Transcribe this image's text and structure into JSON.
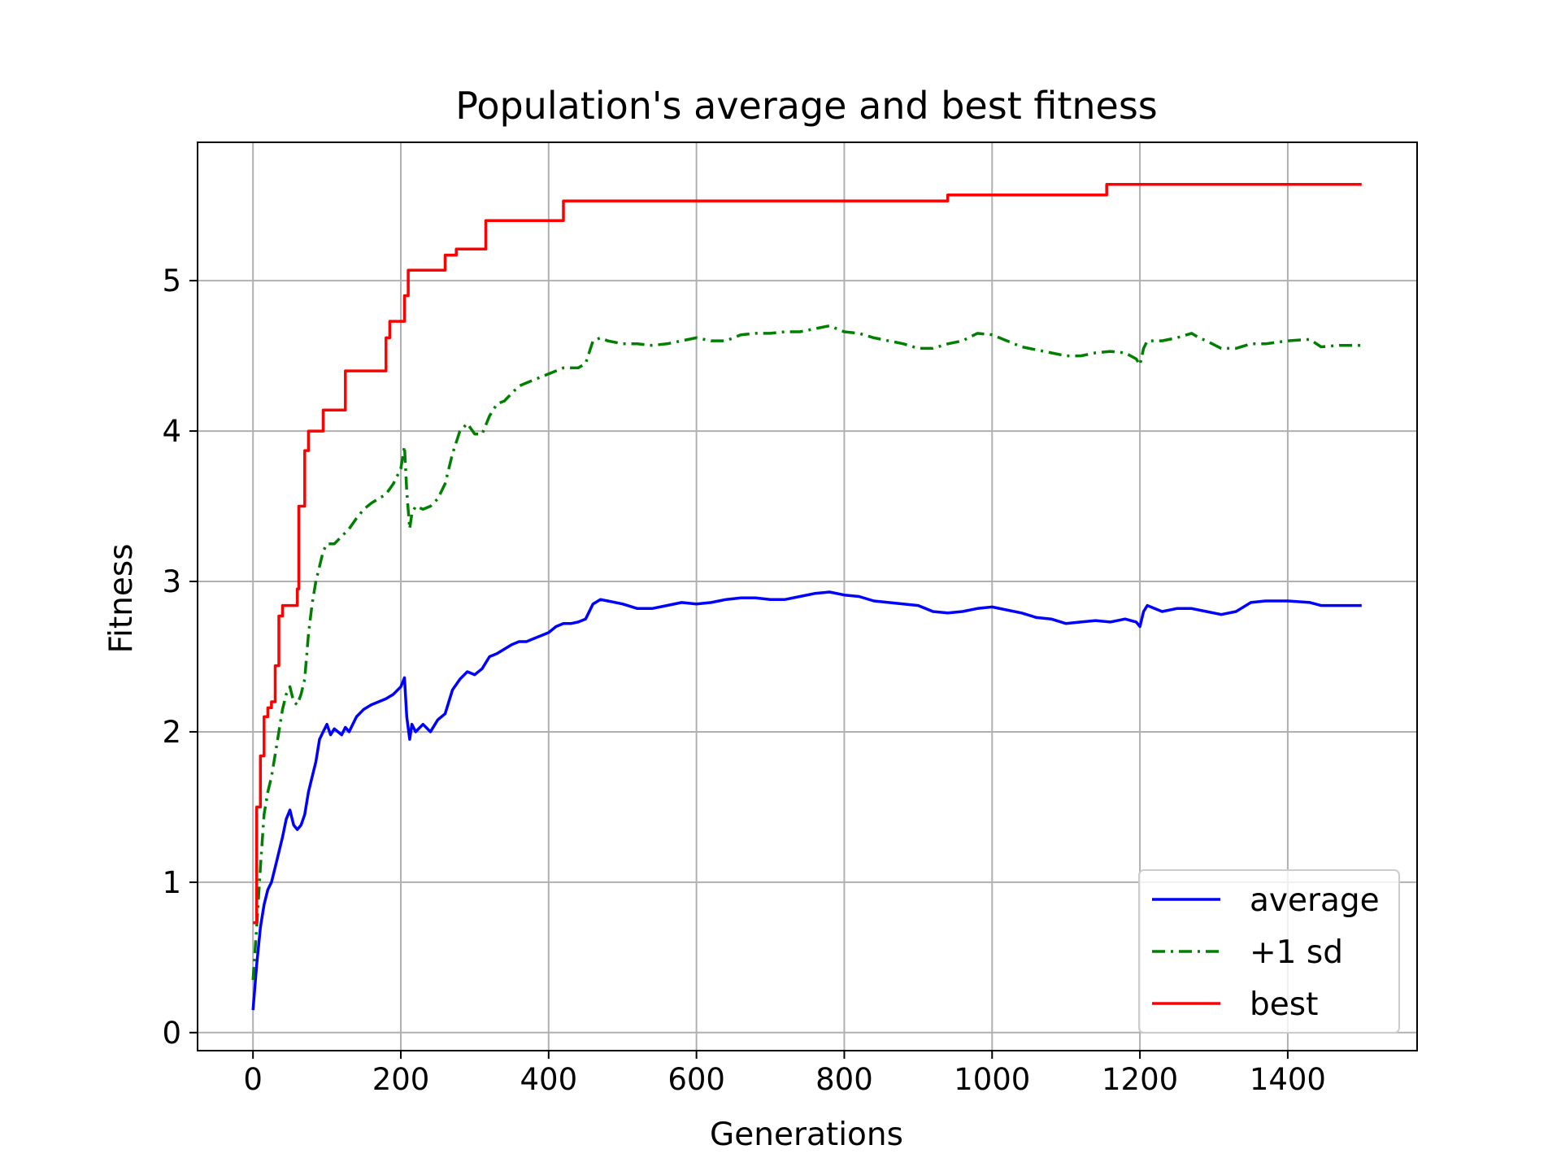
{
  "chart_data": {
    "type": "line",
    "title": "Population's average and best fitness",
    "xlabel": "Generations",
    "ylabel": "Fitness",
    "xlim": [
      -75,
      1575
    ],
    "ylim": [
      -0.12,
      5.92
    ],
    "xticks": [
      0,
      200,
      400,
      600,
      800,
      1000,
      1200,
      1400
    ],
    "xtick_labels": [
      "0",
      "200",
      "400",
      "600",
      "800",
      "1000",
      "1200",
      "1400"
    ],
    "yticks": [
      0,
      1,
      2,
      3,
      4,
      5
    ],
    "ytick_labels": [
      "0",
      "1",
      "2",
      "3",
      "4",
      "5"
    ],
    "grid": true,
    "legend_position": "bottom-right",
    "series": [
      {
        "name": "average",
        "color": "#0000ff",
        "style": "solid",
        "points": [
          [
            0,
            0.15
          ],
          [
            5,
            0.45
          ],
          [
            10,
            0.7
          ],
          [
            15,
            0.85
          ],
          [
            20,
            0.95
          ],
          [
            25,
            1.0
          ],
          [
            30,
            1.1
          ],
          [
            35,
            1.2
          ],
          [
            40,
            1.3
          ],
          [
            45,
            1.42
          ],
          [
            50,
            1.48
          ],
          [
            55,
            1.38
          ],
          [
            60,
            1.35
          ],
          [
            65,
            1.38
          ],
          [
            70,
            1.45
          ],
          [
            75,
            1.6
          ],
          [
            80,
            1.7
          ],
          [
            85,
            1.8
          ],
          [
            90,
            1.95
          ],
          [
            95,
            2.0
          ],
          [
            100,
            2.05
          ],
          [
            105,
            1.98
          ],
          [
            110,
            2.02
          ],
          [
            115,
            2.0
          ],
          [
            120,
            1.98
          ],
          [
            125,
            2.03
          ],
          [
            130,
            2.0
          ],
          [
            135,
            2.05
          ],
          [
            140,
            2.1
          ],
          [
            150,
            2.15
          ],
          [
            160,
            2.18
          ],
          [
            170,
            2.2
          ],
          [
            180,
            2.22
          ],
          [
            190,
            2.25
          ],
          [
            200,
            2.3
          ],
          [
            205,
            2.36
          ],
          [
            208,
            2.1
          ],
          [
            212,
            1.95
          ],
          [
            215,
            2.05
          ],
          [
            220,
            2.0
          ],
          [
            230,
            2.05
          ],
          [
            240,
            2.0
          ],
          [
            250,
            2.08
          ],
          [
            260,
            2.12
          ],
          [
            270,
            2.28
          ],
          [
            280,
            2.35
          ],
          [
            290,
            2.4
          ],
          [
            300,
            2.38
          ],
          [
            310,
            2.42
          ],
          [
            320,
            2.5
          ],
          [
            330,
            2.52
          ],
          [
            340,
            2.55
          ],
          [
            350,
            2.58
          ],
          [
            360,
            2.6
          ],
          [
            370,
            2.6
          ],
          [
            380,
            2.62
          ],
          [
            390,
            2.64
          ],
          [
            400,
            2.66
          ],
          [
            410,
            2.7
          ],
          [
            420,
            2.72
          ],
          [
            430,
            2.72
          ],
          [
            440,
            2.73
          ],
          [
            450,
            2.75
          ],
          [
            460,
            2.85
          ],
          [
            470,
            2.88
          ],
          [
            480,
            2.87
          ],
          [
            500,
            2.85
          ],
          [
            520,
            2.82
          ],
          [
            540,
            2.82
          ],
          [
            560,
            2.84
          ],
          [
            580,
            2.86
          ],
          [
            600,
            2.85
          ],
          [
            620,
            2.86
          ],
          [
            640,
            2.88
          ],
          [
            660,
            2.89
          ],
          [
            680,
            2.89
          ],
          [
            700,
            2.88
          ],
          [
            720,
            2.88
          ],
          [
            740,
            2.9
          ],
          [
            760,
            2.92
          ],
          [
            780,
            2.93
          ],
          [
            800,
            2.91
          ],
          [
            820,
            2.9
          ],
          [
            840,
            2.87
          ],
          [
            860,
            2.86
          ],
          [
            880,
            2.85
          ],
          [
            900,
            2.84
          ],
          [
            920,
            2.8
          ],
          [
            940,
            2.79
          ],
          [
            960,
            2.8
          ],
          [
            980,
            2.82
          ],
          [
            1000,
            2.83
          ],
          [
            1020,
            2.81
          ],
          [
            1040,
            2.79
          ],
          [
            1060,
            2.76
          ],
          [
            1080,
            2.75
          ],
          [
            1100,
            2.72
          ],
          [
            1120,
            2.73
          ],
          [
            1140,
            2.74
          ],
          [
            1160,
            2.73
          ],
          [
            1180,
            2.75
          ],
          [
            1195,
            2.73
          ],
          [
            1200,
            2.7
          ],
          [
            1205,
            2.8
          ],
          [
            1210,
            2.84
          ],
          [
            1230,
            2.8
          ],
          [
            1250,
            2.82
          ],
          [
            1270,
            2.82
          ],
          [
            1290,
            2.8
          ],
          [
            1310,
            2.78
          ],
          [
            1330,
            2.8
          ],
          [
            1350,
            2.86
          ],
          [
            1370,
            2.87
          ],
          [
            1400,
            2.87
          ],
          [
            1430,
            2.86
          ],
          [
            1445,
            2.84
          ],
          [
            1470,
            2.84
          ],
          [
            1500,
            2.84
          ]
        ]
      },
      {
        "name": "+1 sd",
        "color": "#008000",
        "style": "dashdot",
        "points": [
          [
            0,
            0.35
          ],
          [
            5,
            0.7
          ],
          [
            10,
            1.1
          ],
          [
            15,
            1.45
          ],
          [
            20,
            1.6
          ],
          [
            25,
            1.7
          ],
          [
            30,
            1.85
          ],
          [
            35,
            2.0
          ],
          [
            40,
            2.15
          ],
          [
            45,
            2.25
          ],
          [
            50,
            2.3
          ],
          [
            55,
            2.2
          ],
          [
            60,
            2.18
          ],
          [
            65,
            2.25
          ],
          [
            70,
            2.35
          ],
          [
            75,
            2.65
          ],
          [
            80,
            2.85
          ],
          [
            85,
            3.0
          ],
          [
            90,
            3.1
          ],
          [
            95,
            3.2
          ],
          [
            100,
            3.25
          ],
          [
            110,
            3.25
          ],
          [
            120,
            3.3
          ],
          [
            130,
            3.35
          ],
          [
            140,
            3.42
          ],
          [
            150,
            3.48
          ],
          [
            160,
            3.52
          ],
          [
            170,
            3.55
          ],
          [
            180,
            3.58
          ],
          [
            190,
            3.65
          ],
          [
            200,
            3.75
          ],
          [
            205,
            3.9
          ],
          [
            208,
            3.6
          ],
          [
            212,
            3.35
          ],
          [
            215,
            3.45
          ],
          [
            220,
            3.5
          ],
          [
            230,
            3.48
          ],
          [
            240,
            3.5
          ],
          [
            250,
            3.55
          ],
          [
            260,
            3.65
          ],
          [
            270,
            3.85
          ],
          [
            280,
            4.0
          ],
          [
            290,
            4.05
          ],
          [
            300,
            3.98
          ],
          [
            310,
            3.98
          ],
          [
            320,
            4.1
          ],
          [
            330,
            4.18
          ],
          [
            340,
            4.2
          ],
          [
            350,
            4.25
          ],
          [
            360,
            4.3
          ],
          [
            370,
            4.32
          ],
          [
            380,
            4.34
          ],
          [
            390,
            4.36
          ],
          [
            400,
            4.38
          ],
          [
            410,
            4.4
          ],
          [
            420,
            4.42
          ],
          [
            430,
            4.42
          ],
          [
            440,
            4.42
          ],
          [
            450,
            4.45
          ],
          [
            460,
            4.6
          ],
          [
            470,
            4.62
          ],
          [
            480,
            4.6
          ],
          [
            500,
            4.58
          ],
          [
            520,
            4.58
          ],
          [
            540,
            4.57
          ],
          [
            560,
            4.58
          ],
          [
            580,
            4.6
          ],
          [
            600,
            4.62
          ],
          [
            620,
            4.6
          ],
          [
            640,
            4.6
          ],
          [
            660,
            4.64
          ],
          [
            680,
            4.65
          ],
          [
            700,
            4.65
          ],
          [
            720,
            4.66
          ],
          [
            740,
            4.66
          ],
          [
            760,
            4.68
          ],
          [
            780,
            4.7
          ],
          [
            800,
            4.66
          ],
          [
            820,
            4.65
          ],
          [
            840,
            4.62
          ],
          [
            860,
            4.6
          ],
          [
            880,
            4.58
          ],
          [
            900,
            4.55
          ],
          [
            920,
            4.55
          ],
          [
            940,
            4.58
          ],
          [
            960,
            4.6
          ],
          [
            980,
            4.65
          ],
          [
            1000,
            4.64
          ],
          [
            1020,
            4.6
          ],
          [
            1040,
            4.56
          ],
          [
            1060,
            4.54
          ],
          [
            1080,
            4.52
          ],
          [
            1100,
            4.5
          ],
          [
            1120,
            4.5
          ],
          [
            1140,
            4.52
          ],
          [
            1160,
            4.53
          ],
          [
            1180,
            4.52
          ],
          [
            1195,
            4.48
          ],
          [
            1200,
            4.44
          ],
          [
            1205,
            4.55
          ],
          [
            1210,
            4.6
          ],
          [
            1230,
            4.6
          ],
          [
            1250,
            4.62
          ],
          [
            1270,
            4.65
          ],
          [
            1280,
            4.62
          ],
          [
            1290,
            4.6
          ],
          [
            1310,
            4.55
          ],
          [
            1330,
            4.55
          ],
          [
            1350,
            4.58
          ],
          [
            1370,
            4.58
          ],
          [
            1400,
            4.6
          ],
          [
            1430,
            4.61
          ],
          [
            1445,
            4.56
          ],
          [
            1470,
            4.57
          ],
          [
            1500,
            4.57
          ]
        ]
      },
      {
        "name": "best",
        "color": "#ff0000",
        "style": "solid",
        "points": [
          [
            0,
            0.73
          ],
          [
            5,
            0.73
          ],
          [
            5,
            1.5
          ],
          [
            10,
            1.5
          ],
          [
            10,
            1.84
          ],
          [
            15,
            1.84
          ],
          [
            15,
            2.1
          ],
          [
            20,
            2.1
          ],
          [
            20,
            2.16
          ],
          [
            25,
            2.16
          ],
          [
            25,
            2.2
          ],
          [
            30,
            2.2
          ],
          [
            30,
            2.44
          ],
          [
            35,
            2.44
          ],
          [
            35,
            2.77
          ],
          [
            40,
            2.77
          ],
          [
            40,
            2.84
          ],
          [
            60,
            2.84
          ],
          [
            60,
            2.95
          ],
          [
            62,
            2.95
          ],
          [
            62,
            3.5
          ],
          [
            70,
            3.5
          ],
          [
            70,
            3.87
          ],
          [
            75,
            3.87
          ],
          [
            75,
            4.0
          ],
          [
            95,
            4.0
          ],
          [
            95,
            4.14
          ],
          [
            125,
            4.14
          ],
          [
            125,
            4.4
          ],
          [
            180,
            4.4
          ],
          [
            180,
            4.62
          ],
          [
            185,
            4.62
          ],
          [
            185,
            4.73
          ],
          [
            205,
            4.73
          ],
          [
            205,
            4.9
          ],
          [
            210,
            4.9
          ],
          [
            210,
            5.07
          ],
          [
            260,
            5.07
          ],
          [
            260,
            5.17
          ],
          [
            275,
            5.17
          ],
          [
            275,
            5.21
          ],
          [
            315,
            5.21
          ],
          [
            315,
            5.4
          ],
          [
            420,
            5.4
          ],
          [
            420,
            5.53
          ],
          [
            940,
            5.53
          ],
          [
            940,
            5.57
          ],
          [
            1155,
            5.57
          ],
          [
            1155,
            5.64
          ],
          [
            1500,
            5.64
          ]
        ]
      }
    ]
  }
}
